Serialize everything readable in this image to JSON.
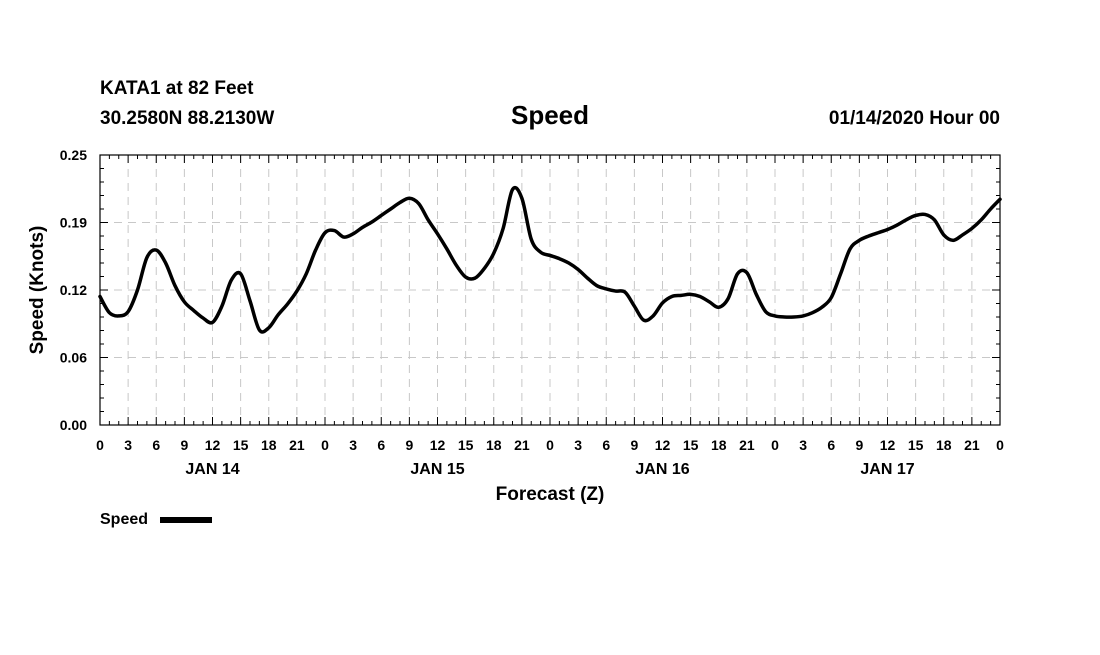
{
  "header": {
    "station": "KATA1 at 82 Feet",
    "location": "30.2580N 88.2130W",
    "title": "Speed",
    "run": "01/14/2020 Hour 00"
  },
  "chart_data": {
    "type": "line",
    "title": "Speed",
    "xlabel": "Forecast (Z)",
    "ylabel": "Speed (Knots)",
    "ylim": [
      0.0,
      0.25
    ],
    "y_ticks": [
      "0.00",
      "0.06",
      "0.12",
      "0.19",
      "0.25"
    ],
    "xlim": [
      0,
      96
    ],
    "x_unit": "forecast hour",
    "x_ticks": [
      "0",
      "3",
      "6",
      "9",
      "12",
      "15",
      "18",
      "21",
      "0",
      "3",
      "6",
      "9",
      "12",
      "15",
      "18",
      "21",
      "0",
      "3",
      "6",
      "9",
      "12",
      "15",
      "18",
      "21",
      "0",
      "3",
      "6",
      "9",
      "12",
      "15",
      "18",
      "21",
      "0"
    ],
    "x_tick_interval_hours": 3,
    "day_labels": [
      {
        "label": "JAN 14",
        "hour": 12
      },
      {
        "label": "JAN 15",
        "hour": 36
      },
      {
        "label": "JAN 16",
        "hour": 60
      },
      {
        "label": "JAN 17",
        "hour": 84
      }
    ],
    "grid": true,
    "legend_position": "bottom-left",
    "series": [
      {
        "name": "Speed",
        "color": "#000000",
        "x": [
          0,
          1,
          2,
          3,
          4,
          5,
          6,
          7,
          8,
          9,
          10,
          11,
          12,
          13,
          14,
          15,
          16,
          17,
          18,
          19,
          20,
          21,
          22,
          23,
          24,
          25,
          26,
          27,
          28,
          29,
          30,
          31,
          32,
          33,
          34,
          35,
          36,
          37,
          38,
          39,
          40,
          41,
          42,
          43,
          44,
          45,
          46,
          47,
          48,
          49,
          50,
          51,
          52,
          53,
          54,
          55,
          56,
          57,
          58,
          59,
          60,
          61,
          62,
          63,
          64,
          65,
          66,
          67,
          68,
          69,
          70,
          71,
          72,
          73,
          74,
          75,
          76,
          77,
          78,
          79,
          80,
          81,
          82,
          83,
          84,
          85,
          86,
          87,
          88,
          89,
          90,
          91,
          92,
          93,
          94,
          95,
          96
        ],
        "y": [
          0.119,
          0.104,
          0.101,
          0.105,
          0.125,
          0.155,
          0.162,
          0.15,
          0.129,
          0.114,
          0.106,
          0.099,
          0.095,
          0.11,
          0.134,
          0.14,
          0.115,
          0.088,
          0.09,
          0.102,
          0.112,
          0.124,
          0.14,
          0.162,
          0.178,
          0.18,
          0.174,
          0.177,
          0.183,
          0.188,
          0.194,
          0.2,
          0.206,
          0.21,
          0.205,
          0.19,
          0.177,
          0.163,
          0.148,
          0.137,
          0.136,
          0.145,
          0.159,
          0.182,
          0.218,
          0.21,
          0.172,
          0.16,
          0.157,
          0.154,
          0.15,
          0.144,
          0.136,
          0.129,
          0.126,
          0.124,
          0.123,
          0.11,
          0.097,
          0.101,
          0.113,
          0.119,
          0.12,
          0.121,
          0.119,
          0.114,
          0.109,
          0.117,
          0.14,
          0.141,
          0.121,
          0.105,
          0.101,
          0.1,
          0.1,
          0.101,
          0.104,
          0.109,
          0.118,
          0.14,
          0.163,
          0.171,
          0.175,
          0.178,
          0.181,
          0.185,
          0.19,
          0.194,
          0.195,
          0.19,
          0.176,
          0.171,
          0.176,
          0.182,
          0.19,
          0.2,
          0.209
        ]
      }
    ]
  }
}
